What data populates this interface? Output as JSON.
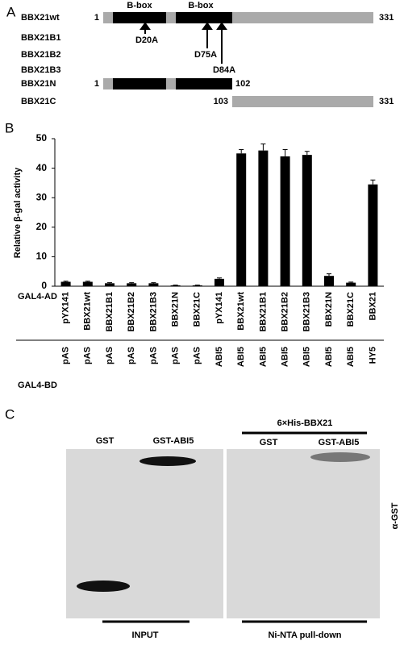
{
  "panel_a": {
    "label": "A",
    "bbox_labels": [
      "B-box",
      "B-box"
    ],
    "rows": [
      "BBX21wt",
      "BBX21B1",
      "BBX21B2",
      "BBX21B3",
      "BBX21N",
      "BBX21C"
    ],
    "wt_start": "1",
    "wt_end": "331",
    "n_start": "1",
    "n_end": "102",
    "c_start": "103",
    "c_end": "331",
    "mutations": [
      "D20A",
      "D75A",
      "D84A"
    ]
  },
  "chart_data": {
    "type": "bar",
    "panel_label": "B",
    "ylabel": "Relative β-gal activity",
    "categories": [
      "pYX141",
      "BBX21wt",
      "BBX21B1",
      "BBX21B2",
      "BBX21B3",
      "BBX21N",
      "BBX21C",
      "pYX141",
      "BBX21wt",
      "BBX21B1",
      "BBX21B2",
      "BBX21B3",
      "BBX21N",
      "BBX21C",
      "BBX21"
    ],
    "bd_categories": [
      "pAS",
      "pAS",
      "pAS",
      "pAS",
      "pAS",
      "pAS",
      "pAS",
      "ABI5",
      "ABI5",
      "ABI5",
      "ABI5",
      "ABI5",
      "ABI5",
      "ABI5",
      "HY5"
    ],
    "ad_row_label": "GAL4-AD",
    "bd_row_label": "GAL4-BD",
    "values": [
      1.5,
      1.5,
      1.0,
      1.0,
      1.0,
      0.3,
      0.3,
      2.5,
      45,
      46,
      44,
      44.5,
      3.5,
      1.2,
      34.5
    ],
    "errors": [
      0.2,
      0.2,
      0.2,
      0.2,
      0.2,
      0.1,
      0.1,
      0.3,
      1.3,
      2.2,
      2.3,
      1.2,
      0.7,
      0.2,
      1.5
    ],
    "color": "#000000",
    "ylim": [
      0,
      50
    ],
    "yticks": [
      0,
      10,
      20,
      30,
      40,
      50
    ],
    "grid": false
  },
  "panel_c": {
    "label": "C",
    "pulldown_protein": "6×His-BBX21",
    "input_lanes": [
      "GST",
      "GST-ABI5"
    ],
    "pulldown_lanes": [
      "GST",
      "GST-ABI5"
    ],
    "antibody": "α-GST",
    "input_label": "INPUT",
    "pulldown_label": "Ni-NTA pull-down"
  }
}
